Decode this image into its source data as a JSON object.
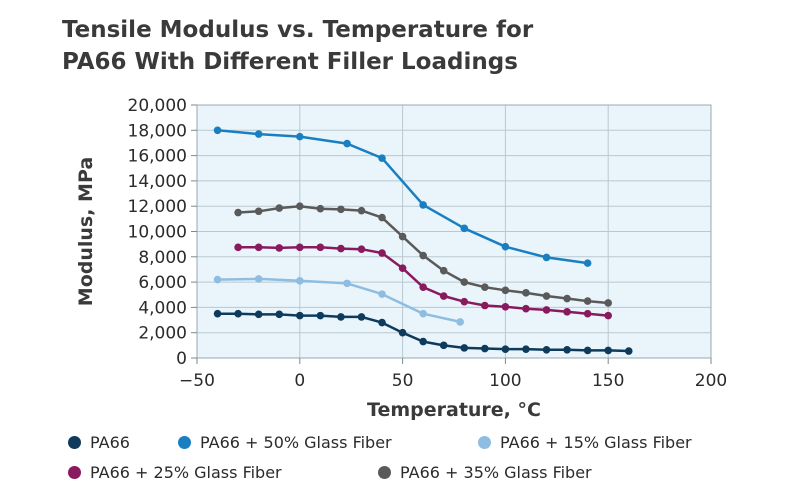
{
  "chart_data": {
    "type": "line",
    "title_lines": [
      "Tensile Modulus vs. Temperature for",
      "PA66 With Different Filler Loadings"
    ],
    "xlabel": "Temperature, °C",
    "ylabel": "Modulus, MPa",
    "xlim": [
      -50,
      200
    ],
    "ylim": [
      0,
      20000
    ],
    "x_ticks": [
      -50,
      0,
      50,
      100,
      150,
      200
    ],
    "x_tick_labels": [
      "−50",
      "0",
      "50",
      "100",
      "150",
      "200"
    ],
    "y_ticks": [
      0,
      2000,
      4000,
      6000,
      8000,
      10000,
      12000,
      14000,
      16000,
      18000,
      20000
    ],
    "y_tick_labels": [
      "0",
      "2,000",
      "4,000",
      "6,000",
      "8,000",
      "10,000",
      "12,000",
      "14,000",
      "16,000",
      "18,000",
      "20,000"
    ],
    "grid": true,
    "plot_background": "#e9f5fb",
    "grid_color": "#b9c8d0",
    "series": [
      {
        "name": "PA66",
        "color": "#0e3a5c",
        "x": [
          -40,
          -30,
          -20,
          -10,
          0,
          10,
          20,
          30,
          40,
          50,
          60,
          70,
          80,
          90,
          100,
          110,
          120,
          130,
          140,
          150,
          160
        ],
        "y": [
          3500,
          3500,
          3450,
          3450,
          3350,
          3350,
          3250,
          3250,
          2800,
          2000,
          1300,
          1000,
          800,
          750,
          700,
          700,
          650,
          650,
          600,
          600,
          550
        ]
      },
      {
        "name": "PA66 + 50% Glass Fiber",
        "color": "#1a7fc0",
        "x": [
          -40,
          -20,
          0,
          23,
          40,
          60,
          80,
          100,
          120,
          140
        ],
        "y": [
          18000,
          17700,
          17500,
          16950,
          15800,
          12100,
          10250,
          8800,
          7950,
          7500
        ]
      },
      {
        "name": "PA66 + 15% Glass Fiber",
        "color": "#8fbde2",
        "x": [
          -40,
          -20,
          0,
          23,
          40,
          60,
          78
        ],
        "y": [
          6200,
          6250,
          6100,
          5900,
          5050,
          3500,
          2850
        ]
      },
      {
        "name": "PA66 + 25% Glass Fiber",
        "color": "#8a1a5e",
        "x": [
          -30,
          -20,
          -10,
          0,
          10,
          20,
          30,
          40,
          50,
          60,
          70,
          80,
          90,
          100,
          110,
          120,
          130,
          140,
          150
        ],
        "y": [
          8750,
          8750,
          8700,
          8750,
          8750,
          8650,
          8600,
          8300,
          7100,
          5600,
          4900,
          4450,
          4150,
          4050,
          3900,
          3800,
          3650,
          3500,
          3350
        ]
      },
      {
        "name": "PA66 + 35% Glass Fiber",
        "color": "#5a5a5a",
        "x": [
          -30,
          -20,
          -10,
          0,
          10,
          20,
          30,
          40,
          50,
          60,
          70,
          80,
          90,
          100,
          110,
          120,
          130,
          140,
          150
        ],
        "y": [
          11500,
          11600,
          11850,
          12000,
          11800,
          11750,
          11650,
          11100,
          9600,
          8100,
          6900,
          6000,
          5600,
          5350,
          5150,
          4900,
          4700,
          4500,
          4350
        ]
      }
    ],
    "legend_placement": "bottom"
  }
}
